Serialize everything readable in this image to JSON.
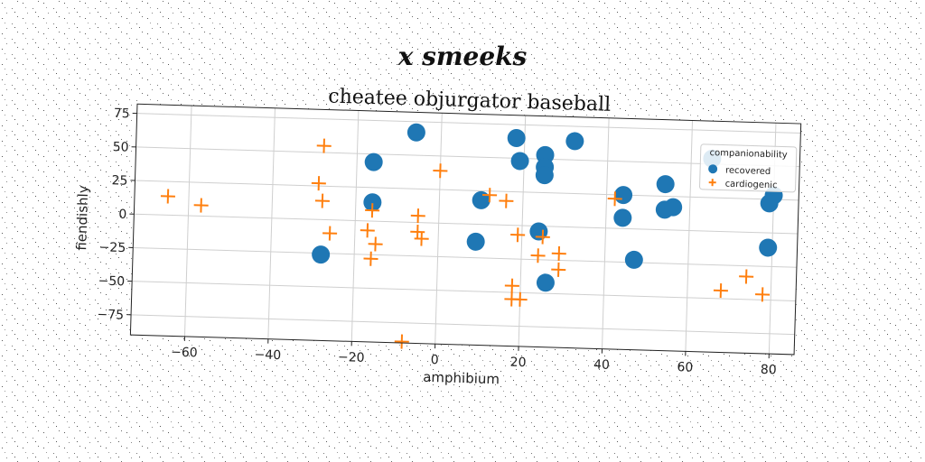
{
  "figure": {
    "suptitle": "x smeeks"
  },
  "colors": {
    "recovered": "#1f77b4",
    "cardiogenic": "#ff7f0e"
  },
  "chart_data": {
    "type": "scatter",
    "title": "cheatee objurgator baseball",
    "xlabel": "amphibium",
    "ylabel": "fiendishly",
    "xlim": [
      -73,
      86
    ],
    "ylim": [
      -90,
      82
    ],
    "xticks": [
      -60,
      -40,
      -20,
      0,
      20,
      40,
      60,
      80
    ],
    "yticks": [
      -75,
      -50,
      -25,
      0,
      25,
      50,
      75
    ],
    "xtick_labels": [
      "−60",
      "−40",
      "−20",
      "0",
      "20",
      "40",
      "60",
      "80"
    ],
    "ytick_labels": [
      "−75",
      "−50",
      "−25",
      "0",
      "25",
      "50",
      "75"
    ],
    "grid": true,
    "legend": {
      "title": "companionability",
      "placement": "upper right",
      "entries": [
        "recovered",
        "cardiogenic"
      ]
    },
    "series": [
      {
        "name": "recovered",
        "marker": "circle",
        "points": [
          [
            -6,
            67
          ],
          [
            18,
            65
          ],
          [
            32,
            64
          ],
          [
            25,
            53
          ],
          [
            19,
            48
          ],
          [
            25,
            44
          ],
          [
            25,
            38
          ],
          [
            -16,
            44
          ],
          [
            -16,
            14
          ],
          [
            10,
            18
          ],
          [
            44,
            25
          ],
          [
            54,
            34
          ],
          [
            54,
            15
          ],
          [
            56,
            17
          ],
          [
            44,
            8
          ],
          [
            24,
            -4
          ],
          [
            9,
            -13
          ],
          [
            -28,
            -26
          ],
          [
            47,
            -23
          ],
          [
            26,
            -42
          ],
          [
            65,
            54
          ],
          [
            80,
            28
          ],
          [
            79,
            22
          ],
          [
            79,
            -11
          ]
        ]
      },
      {
        "name": "cardiogenic",
        "marker": "plus",
        "points": [
          [
            -28,
            55
          ],
          [
            0,
            39
          ],
          [
            -29,
            27
          ],
          [
            -28,
            14
          ],
          [
            -65,
            14
          ],
          [
            -57,
            8
          ],
          [
            -16,
            8
          ],
          [
            -5,
            5
          ],
          [
            12,
            22
          ],
          [
            16,
            18
          ],
          [
            42,
            22
          ],
          [
            -17,
            -7
          ],
          [
            -5,
            -7
          ],
          [
            -4,
            -12
          ],
          [
            -26,
            -10
          ],
          [
            -15,
            -17
          ],
          [
            -16,
            -28
          ],
          [
            19,
            -7
          ],
          [
            25,
            -8
          ],
          [
            24,
            -22
          ],
          [
            29,
            -20
          ],
          [
            29,
            -32
          ],
          [
            18,
            -45
          ],
          [
            18,
            -55
          ],
          [
            20,
            -55
          ],
          [
            68,
            -44
          ],
          [
            74,
            -33
          ],
          [
            78,
            -46
          ],
          [
            -8,
            -89
          ]
        ]
      }
    ]
  }
}
